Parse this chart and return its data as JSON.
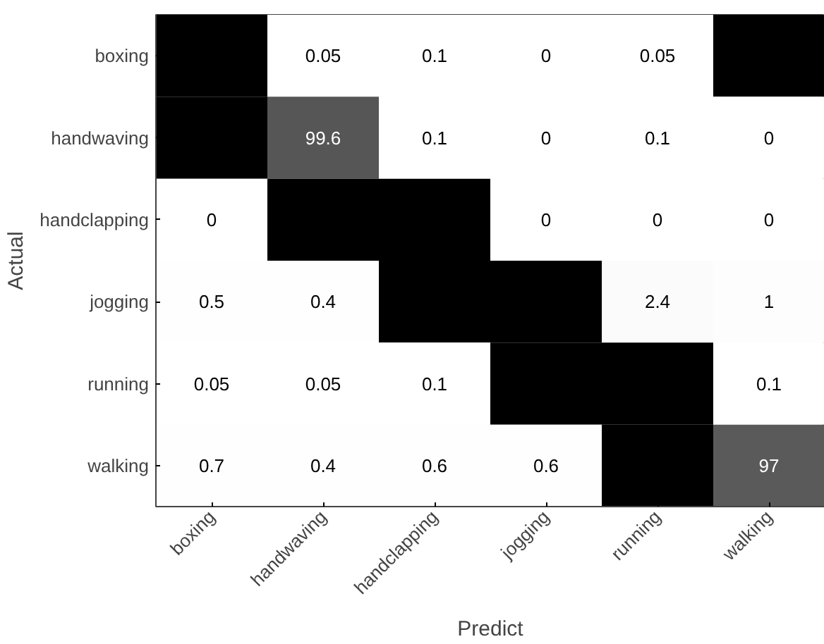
{
  "chart_data": {
    "type": "heatmap",
    "xlabel": "Predict",
    "ylabel": "Actual",
    "categories": [
      "boxing",
      "handwaving",
      "handclapping",
      "jogging",
      "running",
      "walking"
    ],
    "y_categories": [
      "boxing",
      "handwaving",
      "handclapping",
      "jogging",
      "running",
      "walking"
    ],
    "cells": [
      [
        null,
        0.05,
        0.1,
        0,
        0.05,
        null
      ],
      [
        null,
        99.6,
        0.1,
        0,
        0.1,
        0
      ],
      [
        0,
        null,
        null,
        0,
        0,
        0
      ],
      [
        0.5,
        0.4,
        null,
        null,
        2.4,
        1
      ],
      [
        0.05,
        0.05,
        0.1,
        null,
        null,
        0.1
      ],
      [
        0.7,
        0.4,
        0.6,
        0.6,
        null,
        97
      ]
    ],
    "data_labels": true
  }
}
